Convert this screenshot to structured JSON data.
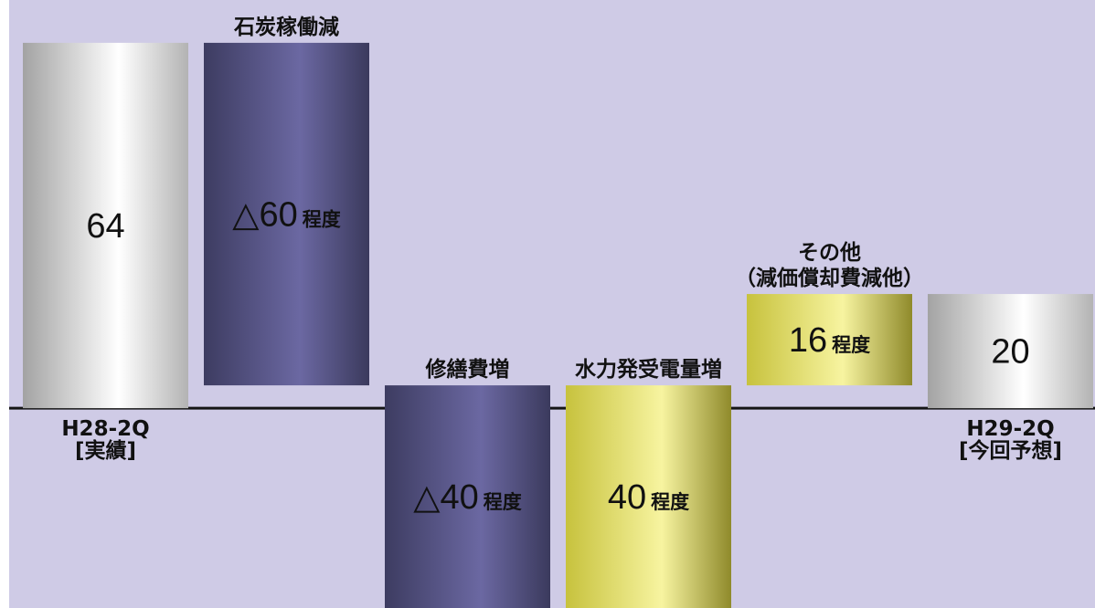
{
  "chart_data": {
    "type": "bar",
    "waterfall": true,
    "categories": [
      [
        "H28-2Q",
        "[実績]"
      ],
      [
        "石炭稼働減"
      ],
      [
        "修繕費増"
      ],
      [
        "水力発受電量増"
      ],
      [
        "その他",
        "（減価償却費減他）"
      ],
      [
        "H29-2Q",
        "[今回予想]"
      ]
    ],
    "values": [
      64,
      -60,
      -40,
      40,
      16,
      20
    ],
    "is_total": [
      true,
      false,
      false,
      false,
      false,
      true
    ],
    "value_labels": [
      {
        "number": "64"
      },
      {
        "number": "△60",
        "suffix": "程度"
      },
      {
        "number": "△40",
        "suffix": "程度"
      },
      {
        "number": "40",
        "suffix": "程度"
      },
      {
        "number": "16",
        "suffix": "程度"
      },
      {
        "number": "20"
      }
    ],
    "ylim": [
      -35,
      71.5
    ],
    "grid": false,
    "legend": false,
    "colors": {
      "background": "#cfcbe6",
      "baseline": "#151515",
      "total": [
        "#a3a3a3",
        "#ffffff",
        "#b3b3b3"
      ],
      "decrease": [
        "#3d3c61",
        "#6b68a2",
        "#3b3a5d"
      ],
      "increase": [
        "#c7c23d",
        "#f7f4a0",
        "#8f8a2b"
      ]
    }
  }
}
